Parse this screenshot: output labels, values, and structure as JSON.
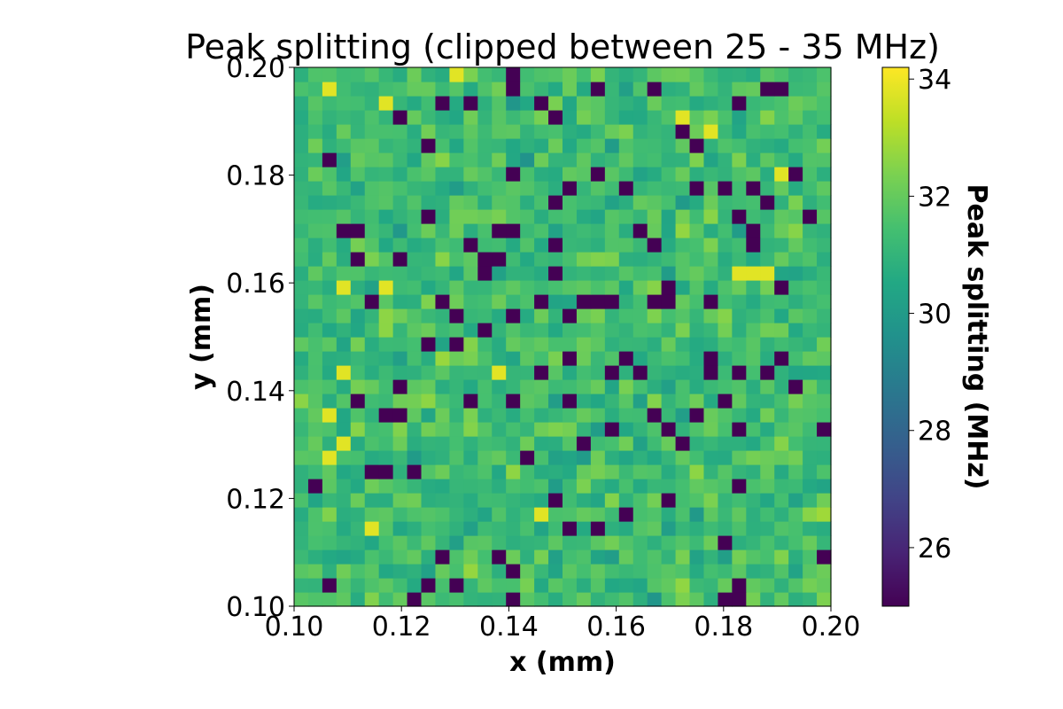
{
  "chart_data": {
    "type": "heatmap",
    "title": "Peak splitting (clipped between 25 - 35 MHz)",
    "xlabel": "x (mm)",
    "ylabel": "y (mm)",
    "colorbar_label": "Peak splitting (MHz)",
    "colormap": "viridis",
    "xlim": [
      0.1,
      0.2
    ],
    "ylim": [
      0.1,
      0.2
    ],
    "clim": [
      25.0,
      34.2
    ],
    "x_ticks": [
      "0.10",
      "0.12",
      "0.14",
      "0.16",
      "0.18",
      "0.20"
    ],
    "y_ticks": [
      "0.10",
      "0.12",
      "0.14",
      "0.16",
      "0.18",
      "0.20"
    ],
    "colorbar_ticks": [
      "26",
      "28",
      "30",
      "32",
      "34"
    ],
    "grid_cols": 38,
    "grid_rows": 38,
    "base_value": 31.3,
    "variation": 1.1,
    "low_value": 25.0,
    "low_cells": [
      [
        15,
        37
      ],
      [
        25,
        36
      ],
      [
        33,
        36
      ],
      [
        34,
        36
      ],
      [
        12,
        35
      ],
      [
        31,
        35
      ],
      [
        10,
        35
      ],
      [
        7,
        34
      ],
      [
        17,
        35
      ],
      [
        21,
        36
      ],
      [
        15,
        36
      ],
      [
        18,
        34
      ],
      [
        27,
        33
      ],
      [
        28,
        32
      ],
      [
        9,
        32
      ],
      [
        2,
        31
      ],
      [
        15,
        30
      ],
      [
        21,
        30
      ],
      [
        35,
        30
      ],
      [
        23,
        29
      ],
      [
        19,
        29
      ],
      [
        28,
        29
      ],
      [
        30,
        29
      ],
      [
        32,
        29
      ],
      [
        18,
        28
      ],
      [
        33,
        28
      ],
      [
        9,
        27
      ],
      [
        31,
        27
      ],
      [
        36,
        27
      ],
      [
        4,
        26
      ],
      [
        3,
        26
      ],
      [
        14,
        26
      ],
      [
        15,
        26
      ],
      [
        32,
        26
      ],
      [
        24,
        26
      ],
      [
        12,
        25
      ],
      [
        18,
        25
      ],
      [
        25,
        25
      ],
      [
        32,
        25
      ],
      [
        4,
        24
      ],
      [
        7,
        24
      ],
      [
        13,
        24
      ],
      [
        14,
        24
      ],
      [
        13,
        23
      ],
      [
        18,
        23
      ],
      [
        26,
        22
      ],
      [
        34,
        22
      ],
      [
        32,
        23
      ],
      [
        5,
        21
      ],
      [
        10,
        21
      ],
      [
        17,
        21
      ],
      [
        20,
        21
      ],
      [
        22,
        21
      ],
      [
        21,
        21
      ],
      [
        25,
        21
      ],
      [
        26,
        21
      ],
      [
        29,
        21
      ],
      [
        11,
        20
      ],
      [
        15,
        20
      ],
      [
        19,
        20
      ],
      [
        9,
        18
      ],
      [
        13,
        19
      ],
      [
        11,
        18
      ],
      [
        23,
        17
      ],
      [
        29,
        17
      ],
      [
        19,
        17
      ],
      [
        34,
        17
      ],
      [
        22,
        16
      ],
      [
        14,
        16
      ],
      [
        24,
        16
      ],
      [
        17,
        16
      ],
      [
        29,
        16
      ],
      [
        31,
        16
      ],
      [
        33,
        16
      ],
      [
        7,
        15
      ],
      [
        35,
        15
      ],
      [
        19,
        14
      ],
      [
        15,
        14
      ],
      [
        30,
        14
      ],
      [
        4,
        14
      ],
      [
        12,
        14
      ],
      [
        25,
        13
      ],
      [
        6,
        13
      ],
      [
        7,
        13
      ],
      [
        26,
        12
      ],
      [
        28,
        13
      ],
      [
        37,
        12
      ],
      [
        22,
        12
      ],
      [
        31,
        12
      ],
      [
        20,
        11
      ],
      [
        27,
        11
      ],
      [
        16,
        10
      ],
      [
        5,
        9
      ],
      [
        6,
        9
      ],
      [
        8,
        9
      ],
      [
        1,
        8
      ],
      [
        31,
        8
      ],
      [
        18,
        7
      ],
      [
        23,
        6
      ],
      [
        26,
        7
      ],
      [
        19,
        5
      ],
      [
        21,
        5
      ],
      [
        10,
        3
      ],
      [
        37,
        3
      ],
      [
        15,
        2
      ],
      [
        2,
        1
      ],
      [
        11,
        1
      ],
      [
        31,
        1
      ],
      [
        30,
        0
      ],
      [
        31,
        0
      ],
      [
        8,
        0
      ],
      [
        15,
        0
      ],
      [
        9,
        1
      ],
      [
        14,
        3
      ],
      [
        30,
        4
      ]
    ],
    "high_cells": [
      [
        11,
        37
      ],
      [
        27,
        34
      ],
      [
        29,
        33
      ],
      [
        2,
        36
      ],
      [
        6,
        35
      ],
      [
        34,
        30
      ],
      [
        32,
        23
      ],
      [
        33,
        23
      ],
      [
        31,
        23
      ],
      [
        3,
        22
      ],
      [
        6,
        22
      ],
      [
        3,
        16
      ],
      [
        14,
        16
      ],
      [
        2,
        13
      ],
      [
        3,
        11
      ],
      [
        2,
        10
      ],
      [
        17,
        6
      ],
      [
        5,
        5
      ]
    ],
    "high_value": 33.8
  }
}
